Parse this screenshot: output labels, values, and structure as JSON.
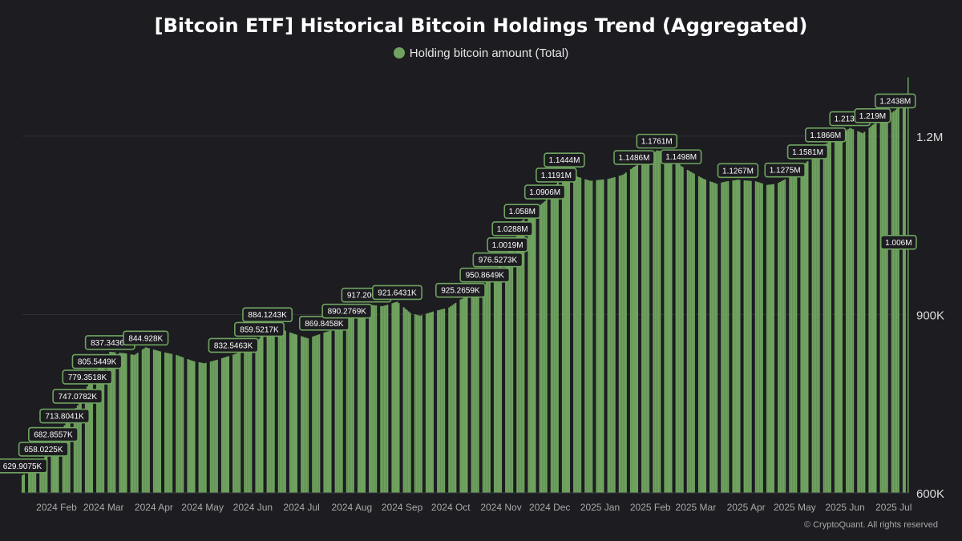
{
  "chart_data": {
    "type": "bar",
    "title": "[Bitcoin ETF] Historical Bitcoin Holdings Trend (Aggregated)",
    "legend": {
      "placement": "top-center"
    },
    "series": [
      {
        "name": "Holding bitcoin amount (Total)",
        "color": "#6fa35f"
      }
    ],
    "x_axis": {
      "ticks": [
        "2024 Feb",
        "2024 Mar",
        "2024 Apr",
        "2024 May",
        "2024 Jun",
        "2024 Jul",
        "2024 Aug",
        "2024 Sep",
        "2024 Oct",
        "2024 Nov",
        "2024 Dec",
        "2025 Jan",
        "2025 Feb",
        "2025 Mar",
        "2025 Apr",
        "2025 May",
        "2025 Jun",
        "2025 Jul"
      ],
      "range": [
        "2024-01-11",
        "2025-07-10"
      ]
    },
    "y_axis": {
      "ticks": [
        {
          "value": 600000,
          "label": "600K"
        },
        {
          "value": 900000,
          "label": "900K"
        },
        {
          "value": 1200000,
          "label": "1.2M"
        }
      ],
      "ylim": [
        600000,
        1305000
      ]
    },
    "grid": "horizontal",
    "points": [
      {
        "date": "2024-01-11",
        "value": 629907.5
      },
      {
        "date": "2024-01-18",
        "value": 640000
      },
      {
        "date": "2024-01-24",
        "value": 658022.5
      },
      {
        "date": "2024-01-30",
        "value": 682855.7
      },
      {
        "date": "2024-02-06",
        "value": 713804.1
      },
      {
        "date": "2024-02-14",
        "value": 747078.2
      },
      {
        "date": "2024-02-20",
        "value": 779351.8
      },
      {
        "date": "2024-02-26",
        "value": 805544.9
      },
      {
        "date": "2024-03-05",
        "value": 837343.6
      },
      {
        "date": "2024-03-14",
        "value": 835000
      },
      {
        "date": "2024-03-20",
        "value": 832000
      },
      {
        "date": "2024-03-27",
        "value": 844928
      },
      {
        "date": "2024-04-05",
        "value": 838000
      },
      {
        "date": "2024-04-15",
        "value": 832000
      },
      {
        "date": "2024-04-25",
        "value": 822000
      },
      {
        "date": "2024-05-02",
        "value": 818000
      },
      {
        "date": "2024-05-10",
        "value": 824000
      },
      {
        "date": "2024-05-20",
        "value": 832546.3
      },
      {
        "date": "2024-05-29",
        "value": 842000
      },
      {
        "date": "2024-06-05",
        "value": 859521.7
      },
      {
        "date": "2024-06-10",
        "value": 884124.3
      },
      {
        "date": "2024-06-18",
        "value": 876000
      },
      {
        "date": "2024-06-26",
        "value": 868000
      },
      {
        "date": "2024-07-05",
        "value": 860000
      },
      {
        "date": "2024-07-15",
        "value": 869845.8
      },
      {
        "date": "2024-07-23",
        "value": 876000
      },
      {
        "date": "2024-07-29",
        "value": 890276.9
      },
      {
        "date": "2024-08-02",
        "value": 900000
      },
      {
        "date": "2024-08-10",
        "value": 917200.2
      },
      {
        "date": "2024-08-20",
        "value": 914000
      },
      {
        "date": "2024-08-29",
        "value": 921643.1
      },
      {
        "date": "2024-09-06",
        "value": 903000
      },
      {
        "date": "2024-09-12",
        "value": 898000
      },
      {
        "date": "2024-09-20",
        "value": 905000
      },
      {
        "date": "2024-09-30",
        "value": 912000
      },
      {
        "date": "2024-10-07",
        "value": 925265.9
      },
      {
        "date": "2024-10-16",
        "value": 938000
      },
      {
        "date": "2024-10-22",
        "value": 950864.9
      },
      {
        "date": "2024-10-30",
        "value": 976527.3
      },
      {
        "date": "2024-11-05",
        "value": 1001900
      },
      {
        "date": "2024-11-08",
        "value": 1028800
      },
      {
        "date": "2024-11-14",
        "value": 1058000
      },
      {
        "date": "2024-11-21",
        "value": 1075000
      },
      {
        "date": "2024-11-28",
        "value": 1090600
      },
      {
        "date": "2024-12-05",
        "value": 1119100
      },
      {
        "date": "2024-12-10",
        "value": 1144400
      },
      {
        "date": "2024-12-18",
        "value": 1132000
      },
      {
        "date": "2024-12-26",
        "value": 1125000
      },
      {
        "date": "2025-01-06",
        "value": 1128000
      },
      {
        "date": "2025-01-15",
        "value": 1135000
      },
      {
        "date": "2025-01-22",
        "value": 1148600
      },
      {
        "date": "2025-01-28",
        "value": 1158000
      },
      {
        "date": "2025-02-05",
        "value": 1176100
      },
      {
        "date": "2025-02-14",
        "value": 1172000
      },
      {
        "date": "2025-02-20",
        "value": 1149800
      },
      {
        "date": "2025-02-26",
        "value": 1140000
      },
      {
        "date": "2025-03-06",
        "value": 1128000
      },
      {
        "date": "2025-03-14",
        "value": 1120000
      },
      {
        "date": "2025-03-20",
        "value": 1124000
      },
      {
        "date": "2025-03-27",
        "value": 1126700
      },
      {
        "date": "2025-04-07",
        "value": 1124000
      },
      {
        "date": "2025-04-14",
        "value": 1118000
      },
      {
        "date": "2025-04-20",
        "value": 1120000
      },
      {
        "date": "2025-04-25",
        "value": 1127500
      },
      {
        "date": "2025-05-01",
        "value": 1140000
      },
      {
        "date": "2025-05-09",
        "value": 1158100
      },
      {
        "date": "2025-05-20",
        "value": 1186600
      },
      {
        "date": "2025-05-28",
        "value": 1200000
      },
      {
        "date": "2025-06-04",
        "value": 1213900
      },
      {
        "date": "2025-06-12",
        "value": 1205000
      },
      {
        "date": "2025-06-18",
        "value": 1219000
      },
      {
        "date": "2025-06-26",
        "value": 1232000
      },
      {
        "date": "2025-07-02",
        "value": 1243800
      },
      {
        "date": "2025-07-08",
        "value": 1260000
      }
    ],
    "data_labels": [
      {
        "date": "2024-01-11",
        "value": 629907.5,
        "label": "629.9075K"
      },
      {
        "date": "2024-01-24",
        "value": 658022.5,
        "label": "658.0225K"
      },
      {
        "date": "2024-01-30",
        "value": 682855.7,
        "label": "682.8557K"
      },
      {
        "date": "2024-02-06",
        "value": 713804.1,
        "label": "713.8041K"
      },
      {
        "date": "2024-02-14",
        "value": 747078.2,
        "label": "747.0782K"
      },
      {
        "date": "2024-02-20",
        "value": 779351.8,
        "label": "779.3518K"
      },
      {
        "date": "2024-02-26",
        "value": 805544.9,
        "label": "805.5449K"
      },
      {
        "date": "2024-03-05",
        "value": 837343.6,
        "label": "837.3436K"
      },
      {
        "date": "2024-03-27",
        "value": 844928,
        "label": "844.928K"
      },
      {
        "date": "2024-05-20",
        "value": 832546.3,
        "label": "832.5463K"
      },
      {
        "date": "2024-06-05",
        "value": 859521.7,
        "label": "859.5217K"
      },
      {
        "date": "2024-06-10",
        "value": 884124.3,
        "label": "884.1243K"
      },
      {
        "date": "2024-07-15",
        "value": 869845.8,
        "label": "869.8458K"
      },
      {
        "date": "2024-07-29",
        "value": 890276.9,
        "label": "890.2769K"
      },
      {
        "date": "2024-08-10",
        "value": 917200.2,
        "label": "917.2002K"
      },
      {
        "date": "2024-08-29",
        "value": 921643.1,
        "label": "921.6431K"
      },
      {
        "date": "2024-10-07",
        "value": 925265.9,
        "label": "925.2659K"
      },
      {
        "date": "2024-10-22",
        "value": 950864.9,
        "label": "950.8649K"
      },
      {
        "date": "2024-10-30",
        "value": 976527.3,
        "label": "976.5273K"
      },
      {
        "date": "2024-11-05",
        "value": 1001900,
        "label": "1.0019M"
      },
      {
        "date": "2024-11-08",
        "value": 1028800,
        "label": "1.0288M"
      },
      {
        "date": "2024-11-14",
        "value": 1058000,
        "label": "1.058M"
      },
      {
        "date": "2024-11-28",
        "value": 1090600,
        "label": "1.0906M"
      },
      {
        "date": "2024-12-05",
        "value": 1119100,
        "label": "1.1191M"
      },
      {
        "date": "2024-12-10",
        "value": 1144400,
        "label": "1.1444M"
      },
      {
        "date": "2025-01-22",
        "value": 1148600,
        "label": "1.1486M"
      },
      {
        "date": "2025-02-05",
        "value": 1176100,
        "label": "1.1761M"
      },
      {
        "date": "2025-02-20",
        "value": 1149800,
        "label": "1.1498M"
      },
      {
        "date": "2025-03-27",
        "value": 1126700,
        "label": "1.1267M"
      },
      {
        "date": "2025-04-25",
        "value": 1127500,
        "label": "1.1275M"
      },
      {
        "date": "2025-05-09",
        "value": 1158100,
        "label": "1.1581M"
      },
      {
        "date": "2025-05-20",
        "value": 1186600,
        "label": "1.1866M"
      },
      {
        "date": "2025-06-04",
        "value": 1213900,
        "label": "1.2139M"
      },
      {
        "date": "2025-06-18",
        "value": 1219000,
        "label": "1.219M"
      },
      {
        "date": "2025-07-02",
        "value": 1243800,
        "label": "1.2438M"
      },
      {
        "date": "2025-07-04",
        "value": 1006000,
        "label": "1.006M"
      }
    ]
  },
  "footer": {
    "copyright": "© CryptoQuant. All rights reserved"
  }
}
